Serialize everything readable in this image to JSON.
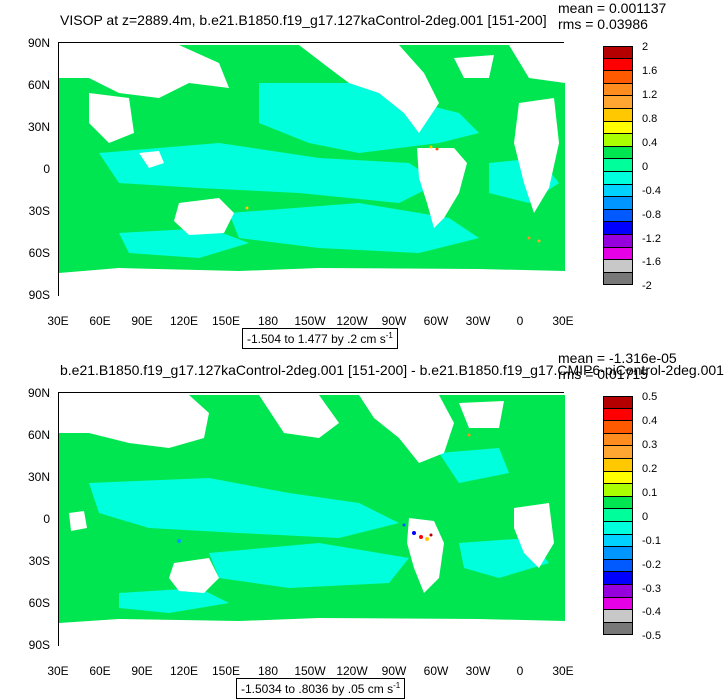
{
  "chart_data": [
    {
      "type": "heatmap",
      "title": "VISOP at z=2889.4m, b.e21.B1850.f19_g17.127kaControl-2deg.001 [151-200]",
      "mean_label": "mean = 0.001137",
      "rms_label": "rms = 0.03986",
      "range_label": "-1.504 to 1.477 by .2 cm s",
      "range_sup": "-1",
      "xticks": [
        "30E",
        "60E",
        "90E",
        "120E",
        "150E",
        "180",
        "150W",
        "120W",
        "90W",
        "60W",
        "30W",
        "0",
        "30E"
      ],
      "yticks": [
        "90N",
        "60N",
        "30N",
        "0",
        "30S",
        "60S",
        "90S"
      ],
      "colorbar_labels": [
        "2",
        "1.6",
        "1.2",
        "0.8",
        "0.4",
        "0",
        "-0.4",
        "-0.8",
        "-1.2",
        "-1.6",
        "-2"
      ],
      "colorbar_colors": [
        "#b40000",
        "#ff0000",
        "#ff5a00",
        "#ff8c1e",
        "#ffa532",
        "#ffc800",
        "#ffff00",
        "#aaff00",
        "#00e650",
        "#00ff9b",
        "#00ffdc",
        "#00d2ff",
        "#0096ff",
        "#005aff",
        "#0000ff",
        "#9600dc",
        "#e600e6",
        "#c8c8c8",
        "#787878"
      ],
      "dominant_color": "#00e650",
      "secondary_color": "#00ffdc"
    },
    {
      "type": "heatmap",
      "title": "b.e21.B1850.f19_g17.127kaControl-2deg.001 [151-200] - b.e21.B1850.f19_g17.CMIP6-piControl-2deg.001",
      "mean_label": "mean = -1.316e-05",
      "rms_label": "rms = 0.01715",
      "range_label": "-1.5034 to .8036 by .05 cm s",
      "range_sup": "-1",
      "xticks": [
        "30E",
        "60E",
        "90E",
        "120E",
        "150E",
        "180",
        "150W",
        "120W",
        "90W",
        "60W",
        "30W",
        "0",
        "30E"
      ],
      "yticks": [
        "90N",
        "60N",
        "30N",
        "0",
        "30S",
        "60S",
        "90S"
      ],
      "colorbar_labels": [
        "0.5",
        "0.4",
        "0.3",
        "0.2",
        "0.1",
        "0",
        "-0.1",
        "-0.2",
        "-0.3",
        "-0.4",
        "-0.5"
      ],
      "colorbar_colors": [
        "#b40000",
        "#ff0000",
        "#ff5a00",
        "#ff8c1e",
        "#ffa532",
        "#ffc800",
        "#ffff00",
        "#aaff00",
        "#00e650",
        "#00ff9b",
        "#00ffdc",
        "#00d2ff",
        "#0096ff",
        "#005aff",
        "#0000ff",
        "#9600dc",
        "#e600e6",
        "#c8c8c8",
        "#787878"
      ],
      "dominant_color": "#00e650",
      "secondary_color": "#00ffdc"
    }
  ]
}
